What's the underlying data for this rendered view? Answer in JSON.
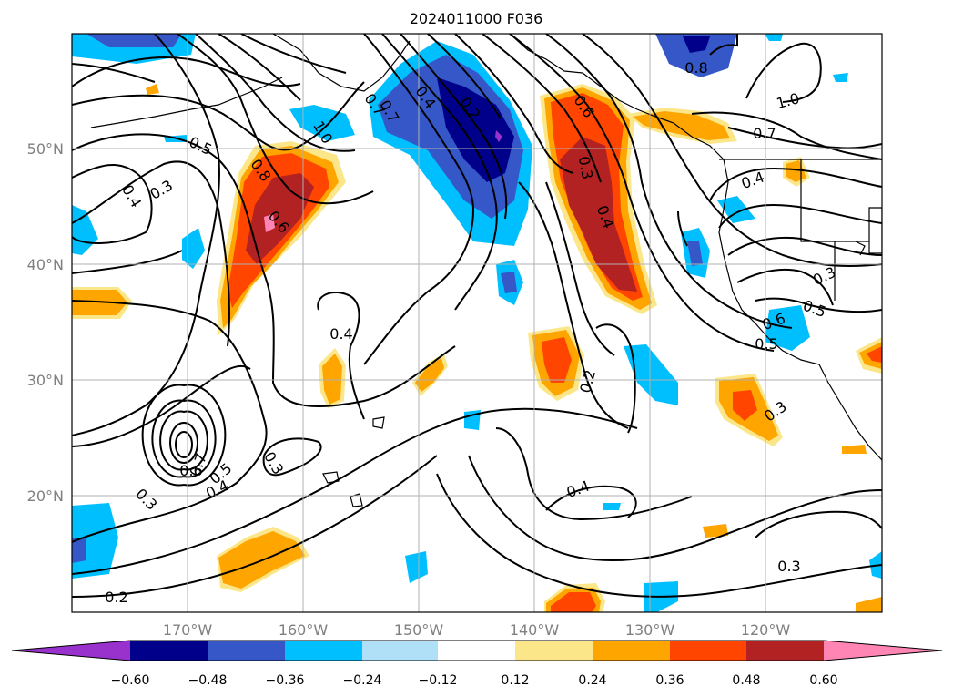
{
  "title": "2024011000 F036",
  "map": {
    "lat_labels": [
      "50°N",
      "40°N",
      "30°N",
      "20°N"
    ],
    "lon_labels": [
      "170°W",
      "160°W",
      "150°W",
      "140°W",
      "130°W",
      "120°W"
    ],
    "contour_labels": [
      "1.0",
      "0.7",
      "0.5",
      "0.4",
      "0.3",
      "0.8",
      "0.6",
      "0.4",
      "0.2",
      "0.7",
      "0.6",
      "0.3",
      "0.4",
      "0.8",
      "1.0",
      "0.7",
      "0.4",
      "0.3",
      "0.5",
      "0.6",
      "0.5",
      "0.4",
      "0.2",
      "0.3",
      "0.3",
      "0.7",
      "0.6",
      "0.5",
      "0.4",
      "0.3",
      "0.4",
      "0.2",
      "0.3"
    ],
    "grid": true
  },
  "colorbar": {
    "ticks": [
      "−0.60",
      "−0.48",
      "−0.36",
      "−0.24",
      "−0.12",
      "0.12",
      "0.24",
      "0.36",
      "0.48",
      "0.60"
    ],
    "colors": [
      "#9932cc",
      "#00008b",
      "#3557c8",
      "#00bfff",
      "#b0e0f8",
      "#ffffff",
      "#fbe78a",
      "#ffa500",
      "#ff4500",
      "#b22222",
      "#ff86b4"
    ],
    "extend": "both"
  }
}
